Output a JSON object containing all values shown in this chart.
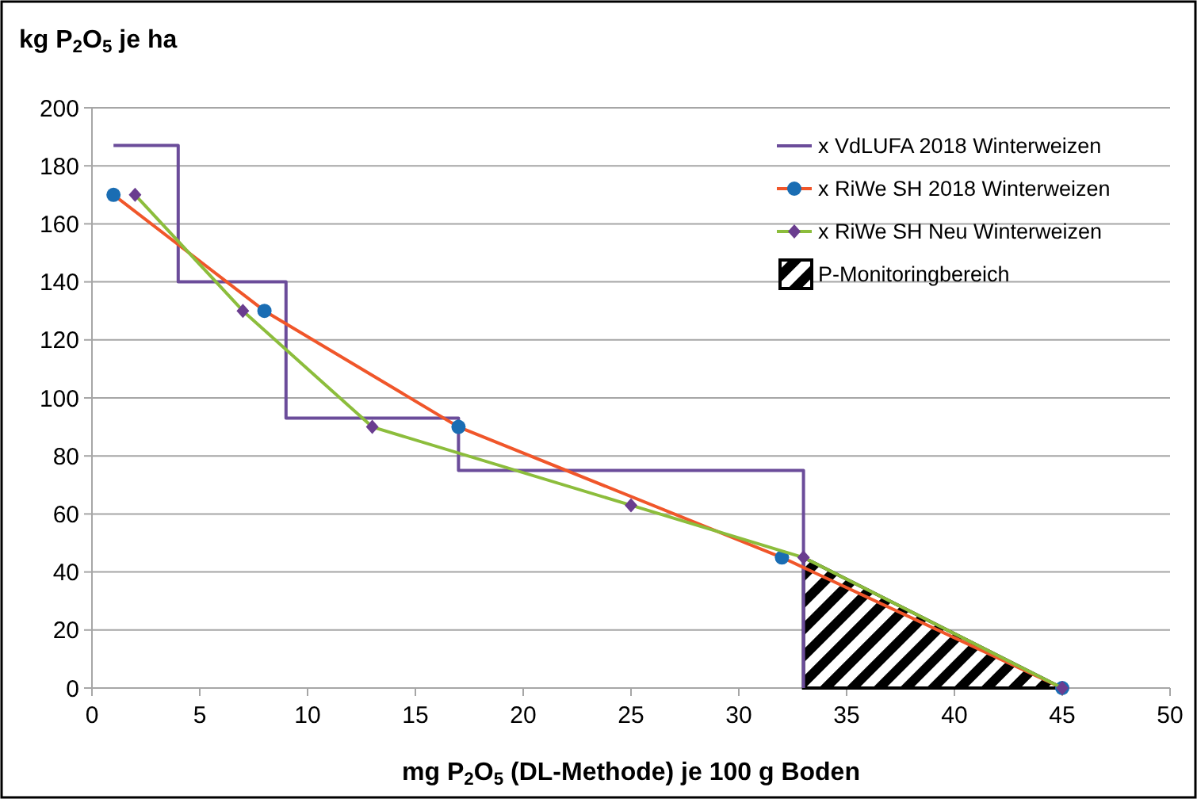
{
  "chart_data": {
    "type": "line",
    "ylabel": "kg P$_{2}$O$_{5}$ je ha",
    "xlabel": "mg P$_{2}$O$_{5}$ (DL-Methode) je 100 g Boden",
    "xlim": [
      0,
      50
    ],
    "xticks": [
      0,
      5,
      10,
      15,
      20,
      25,
      30,
      35,
      40,
      45,
      50
    ],
    "ylim": [
      0,
      200
    ],
    "yticks": [
      0,
      20,
      40,
      60,
      80,
      100,
      120,
      140,
      160,
      180,
      200
    ],
    "grid": "y",
    "legend": "top right",
    "series": [
      {
        "type": "area",
        "name": "P-Monitoringbereich",
        "color": "#000000",
        "x": [
          33,
          45
        ],
        "values": [
          45,
          0
        ]
      },
      {
        "type": "step",
        "name": "x VdLUFA 2018 Winterweizen",
        "color": "#6b4c9a",
        "marker": "none",
        "x": [
          1,
          4,
          9,
          17,
          33
        ],
        "values": [
          187,
          140,
          93,
          75,
          0
        ]
      },
      {
        "name": "x RiWe SH 2018 Winterweizen",
        "color": "#f0562a",
        "marker": "circle",
        "colors": [
          "#1a6db3",
          "#1a6db3",
          "#1a6db3",
          "#1a6db3",
          "#1a6db3"
        ],
        "x": [
          1,
          8,
          17,
          32,
          45
        ],
        "values": [
          170,
          130,
          90,
          45,
          0
        ]
      },
      {
        "name": "x RiWe SH Neu Winterweizen",
        "color": "#8cbd3c",
        "marker": "diamond",
        "colors": [
          "#6a3d8f",
          "#6a3d8f",
          "#6a3d8f",
          "#6a3d8f",
          "#6a3d8f",
          "#6a3d8f"
        ],
        "x": [
          2,
          7,
          13,
          25,
          33,
          45
        ],
        "values": [
          170,
          130,
          90,
          63,
          45,
          0
        ]
      }
    ]
  }
}
